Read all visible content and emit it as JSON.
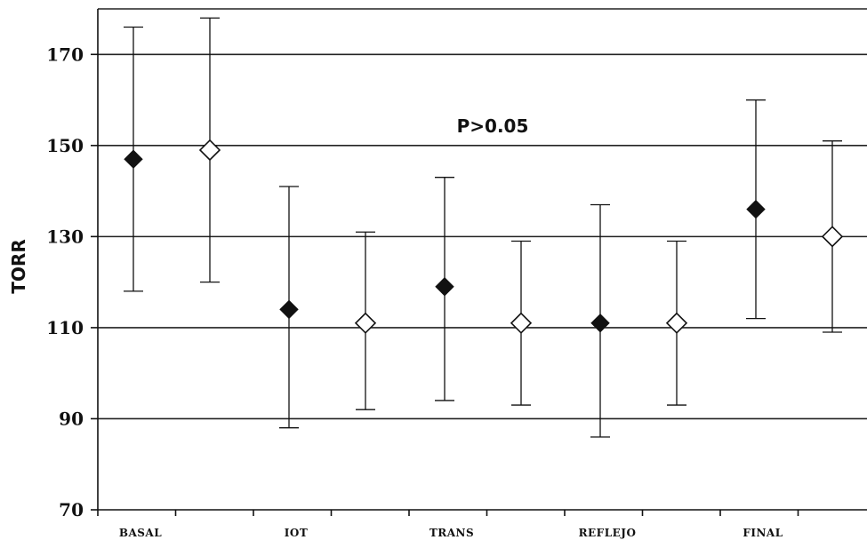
{
  "chart_data": {
    "type": "scatter",
    "ylabel": "TORR",
    "annotation": "P>0.05",
    "ylim": [
      70,
      180
    ],
    "yticks": [
      70,
      90,
      110,
      130,
      150,
      170
    ],
    "grid": true,
    "categories": [
      "BASAL",
      "IOT",
      "TRANS",
      "REFLEJO",
      "FINAL"
    ],
    "series": [
      {
        "marker": "filled-diamond",
        "color": "#111111",
        "values": [
          147,
          114,
          119,
          111,
          136
        ],
        "upper": [
          176,
          141,
          143,
          137,
          160
        ],
        "lower": [
          118,
          88,
          94,
          86,
          112
        ]
      },
      {
        "marker": "open-diamond",
        "color": "#111111",
        "values": [
          149,
          111,
          111,
          111,
          130
        ],
        "upper": [
          178,
          131,
          129,
          129,
          151
        ],
        "lower": [
          120,
          92,
          93,
          93,
          109
        ]
      }
    ]
  }
}
